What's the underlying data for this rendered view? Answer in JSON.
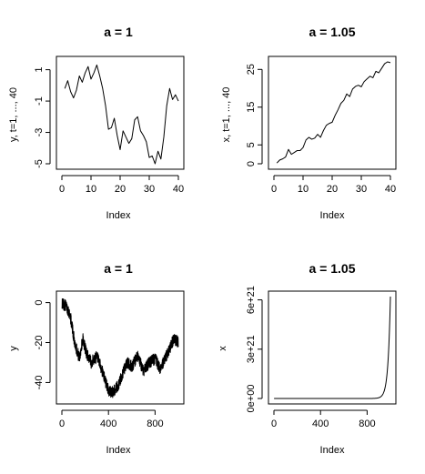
{
  "chart_data": [
    {
      "type": "line",
      "title": "a = 1",
      "xlabel": "Index",
      "ylabel": "y, t=1, ..., 40",
      "xlim": [
        0,
        40
      ],
      "ylim": [
        -5,
        1.5
      ],
      "xticks": [
        0,
        10,
        20,
        30,
        40
      ],
      "yticks": [
        -5,
        -3,
        -1,
        1
      ],
      "xtick_labels": [
        "0",
        "10",
        "20",
        "30",
        "40"
      ],
      "ytick_labels": [
        "-5",
        "-3",
        "-1",
        "1"
      ],
      "x": [
        1,
        2,
        3,
        4,
        5,
        6,
        7,
        8,
        9,
        10,
        11,
        12,
        13,
        14,
        15,
        16,
        17,
        18,
        19,
        20,
        21,
        22,
        23,
        24,
        25,
        26,
        27,
        28,
        29,
        30,
        31,
        32,
        33,
        34,
        35,
        36,
        37,
        38,
        39,
        40
      ],
      "series": [
        {
          "values": [
            -0.2,
            0.3,
            -0.4,
            -0.8,
            -0.3,
            0.6,
            0.2,
            0.8,
            1.2,
            0.4,
            0.8,
            1.3,
            0.6,
            -0.2,
            -1.3,
            -2.8,
            -2.7,
            -2.1,
            -3.2,
            -4.1,
            -2.9,
            -3.3,
            -3.7,
            -3.4,
            -2.2,
            -2.0,
            -2.9,
            -3.2,
            -3.6,
            -4.6,
            -4.5,
            -5.0,
            -4.2,
            -4.7,
            -3.3,
            -1.3,
            -0.2,
            -0.9,
            -0.6,
            -1.0
          ]
        }
      ],
      "grid": false
    },
    {
      "type": "line",
      "title": "a = 1.05",
      "xlabel": "Index",
      "ylabel": "x, t=1, ..., 40",
      "xlim": [
        0,
        40
      ],
      "ylim": [
        0,
        27
      ],
      "xticks": [
        0,
        10,
        20,
        30,
        40
      ],
      "yticks": [
        0,
        5,
        15,
        25
      ],
      "xtick_labels": [
        "0",
        "10",
        "20",
        "30",
        "40"
      ],
      "ytick_labels": [
        "0",
        "5",
        "15",
        "25"
      ],
      "x": [
        1,
        2,
        3,
        4,
        5,
        6,
        7,
        8,
        9,
        10,
        11,
        12,
        13,
        14,
        15,
        16,
        17,
        18,
        19,
        20,
        21,
        22,
        23,
        24,
        25,
        26,
        27,
        28,
        29,
        30,
        31,
        32,
        33,
        34,
        35,
        36,
        37,
        38,
        39,
        40
      ],
      "series": [
        {
          "values": [
            0.2,
            1.0,
            1.3,
            1.8,
            3.8,
            2.5,
            3.0,
            3.5,
            3.5,
            4.3,
            6.3,
            7.0,
            6.5,
            6.8,
            7.8,
            7.0,
            8.8,
            10.2,
            10.7,
            11.0,
            12.8,
            14.3,
            16.0,
            16.8,
            18.5,
            17.8,
            19.8,
            20.5,
            20.8,
            20.4,
            21.8,
            22.5,
            23.2,
            22.8,
            24.5,
            24.1,
            25.3,
            26.5,
            27.0,
            26.8
          ]
        }
      ],
      "grid": false
    },
    {
      "type": "line",
      "title": "a = 1",
      "xlabel": "Index",
      "ylabel": "y",
      "xlim": [
        0,
        1000
      ],
      "ylim": [
        -48,
        3
      ],
      "xticks": [
        0,
        400,
        800
      ],
      "yticks": [
        -40,
        -20,
        0
      ],
      "xtick_labels": [
        "0",
        "400",
        "800"
      ],
      "ytick_labels": [
        "-40",
        "-20",
        "0"
      ],
      "x_knots": [
        0,
        40,
        70,
        110,
        150,
        180,
        210,
        250,
        300,
        350,
        400,
        430,
        450,
        480,
        520,
        560,
        600,
        650,
        700,
        750,
        800,
        840,
        880,
        920,
        960,
        1000
      ],
      "y_knots": [
        0,
        -2,
        -6,
        -20,
        -28,
        -18,
        -25,
        -30,
        -27,
        -35,
        -44,
        -45,
        -44,
        -42,
        -36,
        -30,
        -32,
        -27,
        -34,
        -30,
        -28,
        -33,
        -29,
        -24,
        -18,
        -20
      ],
      "n_points": 1000,
      "noise_amplitude": 3,
      "grid": false
    },
    {
      "type": "line",
      "title": "a = 1.05",
      "xlabel": "Index",
      "ylabel": "x",
      "xlim": [
        0,
        1000
      ],
      "ylim": [
        0,
        6.2e+21
      ],
      "xticks": [
        0,
        400,
        800
      ],
      "yticks": [
        0,
        3e+21,
        6e+21
      ],
      "xtick_labels": [
        "0",
        "400",
        "800"
      ],
      "ytick_labels": [
        "0e+00",
        "3e+21",
        "6e+21"
      ],
      "n_points": 1000,
      "growth_rate": 1.05,
      "final_value": 6.2e+21,
      "grid": false
    }
  ]
}
